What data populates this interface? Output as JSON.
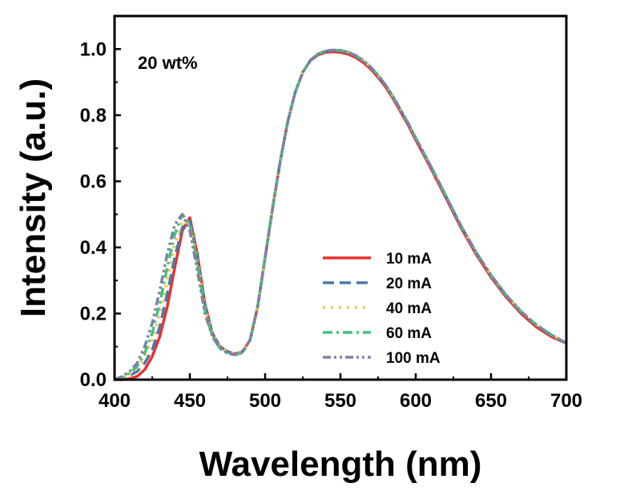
{
  "chart_data": {
    "type": "line",
    "title": "",
    "xlabel": "Wavelength (nm)",
    "ylabel": "Intensity (a.u.)",
    "xlim": [
      400,
      700
    ],
    "ylim": [
      0,
      1.1
    ],
    "x_ticks": [
      400,
      450,
      500,
      550,
      600,
      650,
      700
    ],
    "y_ticks": [
      0.0,
      0.2,
      0.4,
      0.6,
      0.8,
      1.0
    ],
    "y_tick_labels": [
      "0.0",
      "0.2",
      "0.4",
      "0.6",
      "0.8",
      "1.0"
    ],
    "grid": false,
    "legend_position": "center-right",
    "annotation": "20 wt%",
    "x": [
      400,
      405,
      410,
      415,
      420,
      425,
      430,
      435,
      440,
      445,
      450,
      455,
      460,
      465,
      470,
      475,
      480,
      485,
      490,
      495,
      500,
      505,
      510,
      515,
      520,
      525,
      530,
      535,
      540,
      545,
      550,
      555,
      560,
      565,
      570,
      575,
      580,
      585,
      590,
      595,
      600,
      610,
      620,
      630,
      640,
      650,
      660,
      670,
      680,
      690,
      700
    ],
    "series": [
      {
        "name": "10 mA",
        "color": "#e8312f",
        "dash": "solid",
        "values": [
          0.0,
          0.0,
          0.003,
          0.01,
          0.03,
          0.07,
          0.13,
          0.22,
          0.34,
          0.45,
          0.49,
          0.38,
          0.23,
          0.14,
          0.1,
          0.085,
          0.078,
          0.085,
          0.12,
          0.22,
          0.37,
          0.52,
          0.66,
          0.78,
          0.87,
          0.93,
          0.965,
          0.982,
          0.99,
          0.992,
          0.99,
          0.985,
          0.975,
          0.96,
          0.94,
          0.915,
          0.885,
          0.85,
          0.81,
          0.77,
          0.725,
          0.64,
          0.55,
          0.46,
          0.38,
          0.31,
          0.25,
          0.2,
          0.16,
          0.13,
          0.11
        ]
      },
      {
        "name": "20 mA",
        "color": "#4d78a8",
        "dash": "dash",
        "values": [
          0.0,
          0.005,
          0.012,
          0.025,
          0.05,
          0.09,
          0.16,
          0.26,
          0.37,
          0.46,
          0.48,
          0.37,
          0.23,
          0.14,
          0.1,
          0.085,
          0.078,
          0.085,
          0.12,
          0.22,
          0.37,
          0.52,
          0.66,
          0.78,
          0.87,
          0.93,
          0.965,
          0.984,
          0.993,
          0.996,
          0.995,
          0.99,
          0.98,
          0.965,
          0.945,
          0.92,
          0.89,
          0.855,
          0.815,
          0.775,
          0.73,
          0.645,
          0.555,
          0.465,
          0.385,
          0.315,
          0.255,
          0.205,
          0.165,
          0.135,
          0.11
        ]
      },
      {
        "name": "40 mA",
        "color": "#f5c542",
        "dash": "dot",
        "values": [
          0.0,
          0.007,
          0.017,
          0.035,
          0.07,
          0.12,
          0.2,
          0.3,
          0.41,
          0.48,
          0.47,
          0.36,
          0.22,
          0.14,
          0.1,
          0.085,
          0.078,
          0.085,
          0.12,
          0.22,
          0.37,
          0.52,
          0.66,
          0.78,
          0.87,
          0.93,
          0.966,
          0.985,
          0.994,
          0.997,
          0.996,
          0.991,
          0.981,
          0.966,
          0.946,
          0.921,
          0.891,
          0.856,
          0.816,
          0.776,
          0.731,
          0.646,
          0.556,
          0.466,
          0.386,
          0.316,
          0.256,
          0.206,
          0.166,
          0.136,
          0.11
        ]
      },
      {
        "name": "60 mA",
        "color": "#3fc47e",
        "dash": "dashdot",
        "values": [
          0.0,
          0.008,
          0.02,
          0.04,
          0.08,
          0.14,
          0.23,
          0.34,
          0.44,
          0.5,
          0.47,
          0.35,
          0.21,
          0.13,
          0.095,
          0.08,
          0.075,
          0.082,
          0.12,
          0.22,
          0.37,
          0.52,
          0.66,
          0.78,
          0.87,
          0.93,
          0.966,
          0.985,
          0.994,
          0.997,
          0.996,
          0.991,
          0.981,
          0.966,
          0.946,
          0.921,
          0.891,
          0.856,
          0.816,
          0.776,
          0.731,
          0.646,
          0.556,
          0.466,
          0.386,
          0.316,
          0.256,
          0.206,
          0.166,
          0.136,
          0.11
        ]
      },
      {
        "name": "100 mA",
        "color": "#8080a8",
        "dash": "dashdotdot",
        "values": [
          0.0,
          0.01,
          0.025,
          0.05,
          0.1,
          0.17,
          0.27,
          0.38,
          0.47,
          0.5,
          0.45,
          0.33,
          0.2,
          0.13,
          0.095,
          0.08,
          0.075,
          0.082,
          0.12,
          0.22,
          0.37,
          0.52,
          0.66,
          0.78,
          0.87,
          0.93,
          0.966,
          0.985,
          0.994,
          0.997,
          0.996,
          0.991,
          0.981,
          0.966,
          0.946,
          0.921,
          0.891,
          0.856,
          0.816,
          0.776,
          0.731,
          0.646,
          0.556,
          0.466,
          0.386,
          0.316,
          0.256,
          0.206,
          0.166,
          0.136,
          0.11
        ]
      }
    ]
  }
}
